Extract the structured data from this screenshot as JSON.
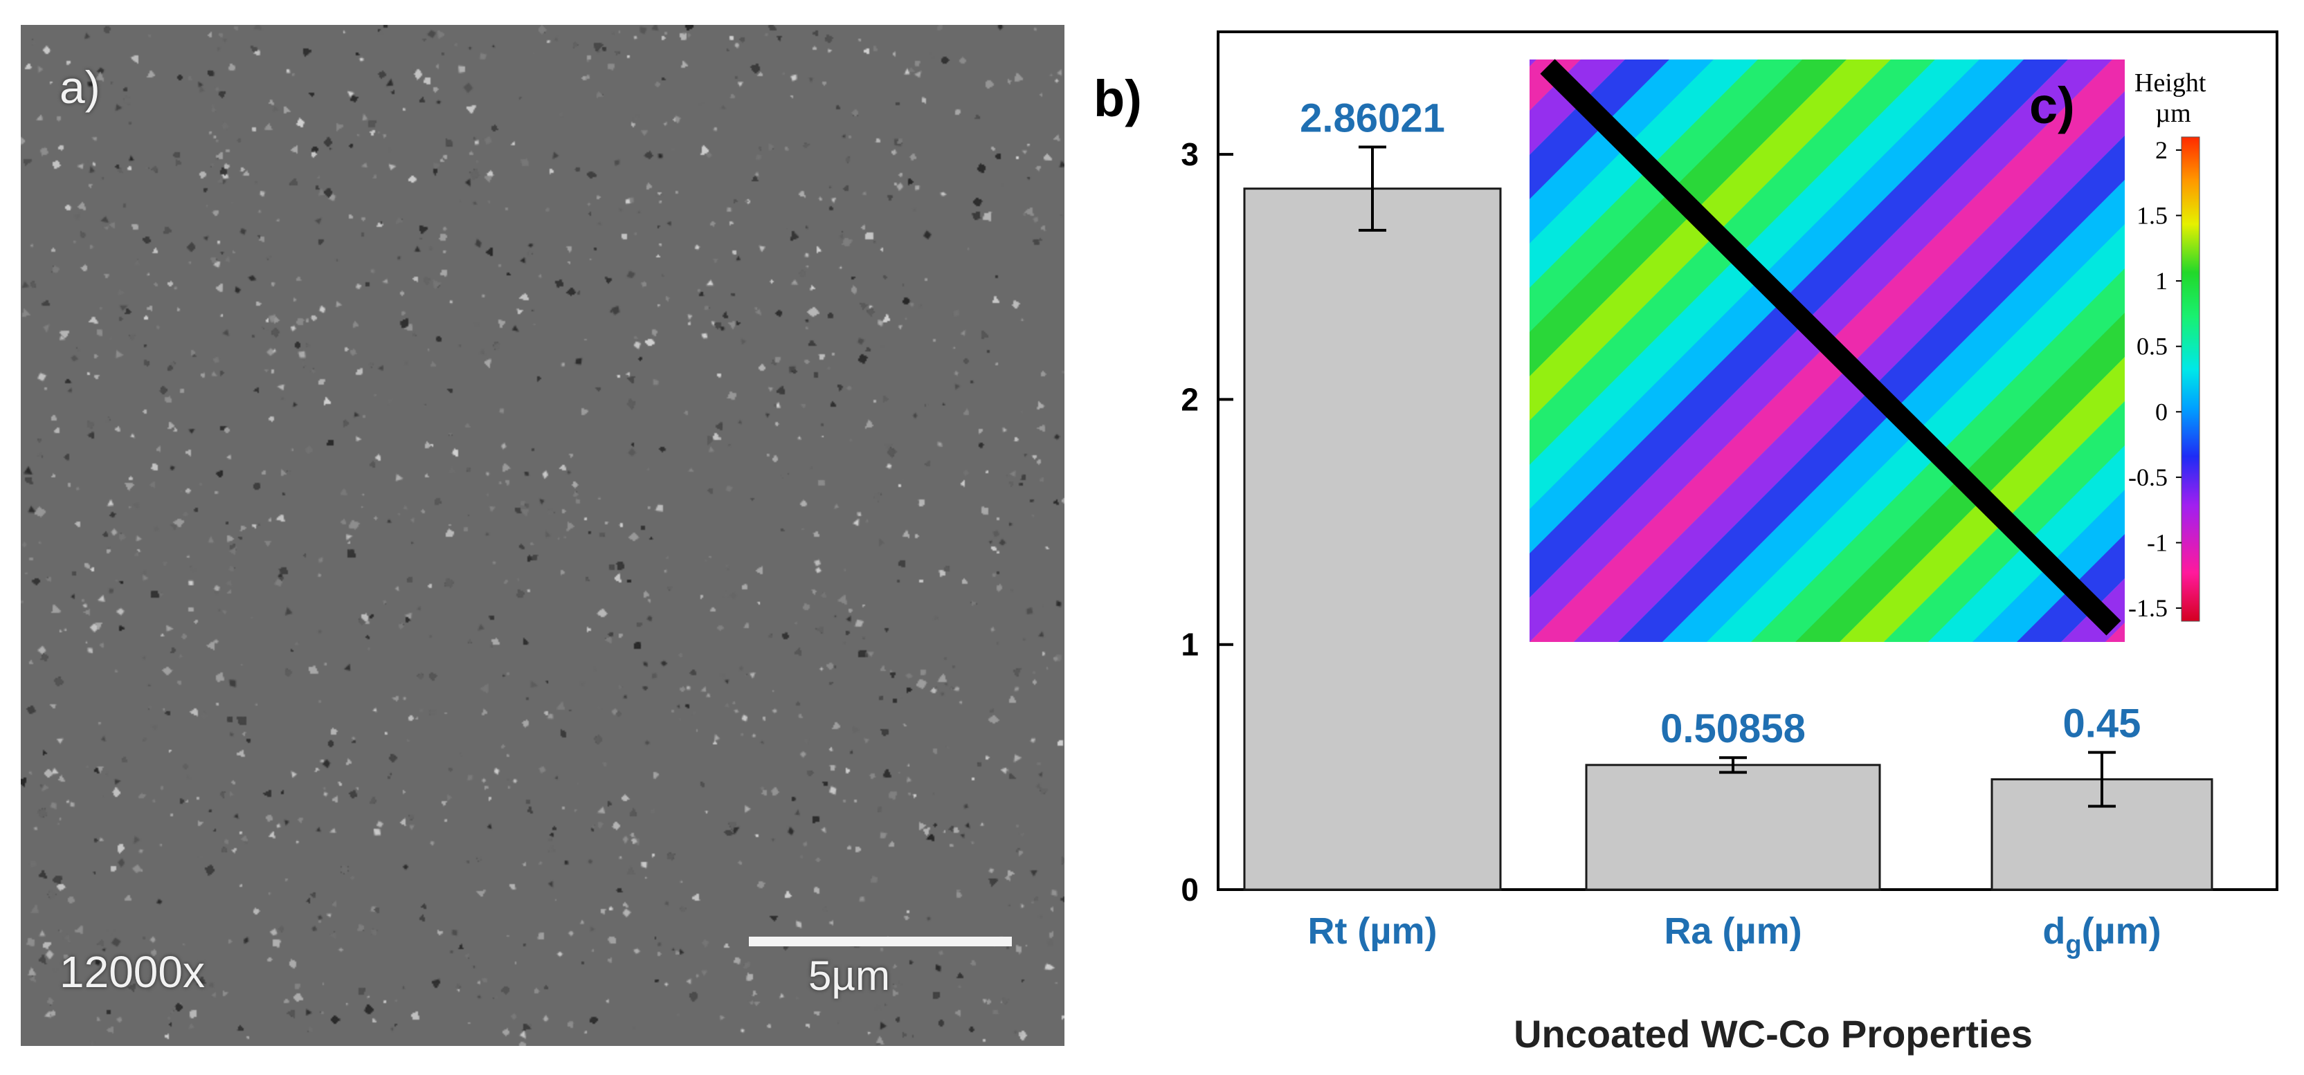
{
  "panel_a": {
    "label": "a)",
    "magnification": "12000x",
    "scale_bar_label": "5µm"
  },
  "panel_c": {
    "label": "c)",
    "colorbar_title": "Height",
    "colorbar_unit": "µm",
    "colorbar_ticks": [
      "2",
      "1.5",
      "1",
      "0.5",
      "0",
      "-0.5",
      "-1",
      "-1.5"
    ],
    "colorbar_tick_values": [
      2,
      1.5,
      1,
      0.5,
      0,
      -0.5,
      -1,
      -1.5
    ],
    "colorbar_range": [
      -1.6,
      2.1
    ]
  },
  "chart_data": {
    "type": "bar",
    "panel_label": "b)",
    "categories": [
      "Rt (µm)",
      "Ra (µm)",
      "dg(µm)"
    ],
    "category_main": [
      "Rt (µm)",
      "Ra (µm)",
      "d"
    ],
    "category_sub": [
      "",
      "",
      "g"
    ],
    "category_suffix": [
      "",
      "",
      "(µm)"
    ],
    "values": [
      2.86021,
      0.50858,
      0.45
    ],
    "value_labels": [
      "2.86021",
      "0.50858",
      "0.45"
    ],
    "error": [
      0.17,
      0.03,
      0.11
    ],
    "xlabel": "Uncoated WC-Co Properties",
    "ylabel": "",
    "ylim": [
      0,
      3.5
    ],
    "yticks": [
      0,
      1,
      2,
      3
    ],
    "ytick_labels": [
      "0",
      "1",
      "2",
      "3"
    ],
    "bar_color": "#c8c8c8",
    "label_color": "#1f6fb2",
    "grid": false
  }
}
